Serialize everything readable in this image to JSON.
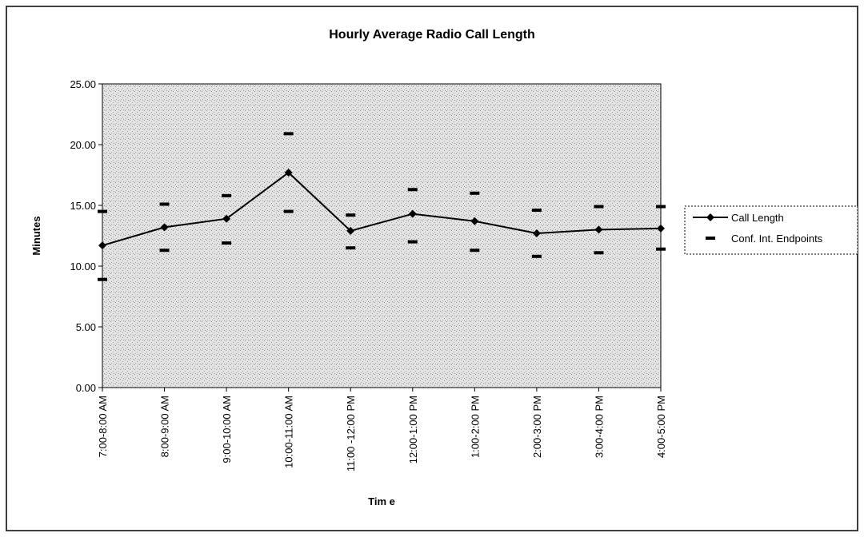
{
  "chart_data": {
    "type": "line",
    "title": "Hourly Average Radio Call Length",
    "x_label": "Tim e",
    "y_label": "Minutes",
    "categories": [
      "7:00-8:00 AM",
      "8:00-9:00 AM",
      "9:00-10:00 AM",
      "10:00-11:00 AM",
      "11:00 -12:00 PM",
      "12:00-1:00 PM",
      "1:00-2:00 PM",
      "2:00-3:00 PM",
      "3:00-4:00 PM",
      "4:00-5:00 PM"
    ],
    "series": [
      {
        "name": "Call Length",
        "color": "#000000",
        "marker": "diamond",
        "values": [
          11.7,
          13.2,
          13.9,
          17.7,
          12.9,
          14.3,
          13.7,
          12.7,
          13.0,
          13.1
        ]
      },
      {
        "name": "Conf. Int. Endpoints",
        "color": "#000000",
        "marker": "dash",
        "high": [
          14.5,
          15.1,
          15.8,
          20.9,
          14.2,
          16.3,
          16.0,
          14.6,
          14.9,
          14.9
        ],
        "low": [
          8.9,
          11.3,
          11.9,
          14.5,
          11.5,
          12.0,
          11.3,
          10.8,
          11.1,
          11.4
        ]
      }
    ],
    "ylim": [
      0,
      25
    ],
    "yticks": [
      {
        "value": 0,
        "label": "0.00"
      },
      {
        "value": 5,
        "label": "5.00"
      },
      {
        "value": 10,
        "label": "10.00"
      },
      {
        "value": 15,
        "label": "15.00"
      },
      {
        "value": 20,
        "label": "20.00"
      },
      {
        "value": 25,
        "label": "25.00"
      }
    ],
    "legend": "right"
  }
}
